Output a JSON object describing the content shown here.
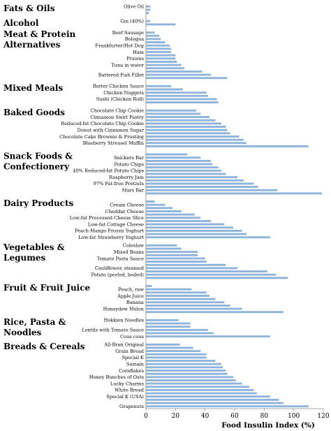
{
  "chart_data": {
    "type": "bar",
    "orientation": "horizontal",
    "xlabel": "Food Insulin Index (%)",
    "xlim": [
      0,
      120
    ],
    "xticks": [
      0,
      20,
      40,
      60,
      80,
      100,
      120
    ],
    "grid": false,
    "bar_color": "#8fb4dc",
    "groups": [
      {
        "name": "Fats & Oils",
        "items": [
          {
            "label": "Olive Oil",
            "value": 3
          },
          {
            "label": "",
            "value": 3
          },
          {
            "label": "",
            "value": 2
          }
        ]
      },
      {
        "name": "Alcohol",
        "items": [
          {
            "label": "Gin (40%)",
            "value": 3
          },
          {
            "label": "",
            "value": 20
          }
        ]
      },
      {
        "name": "Meat & Protein Alternatives",
        "items": [
          {
            "label": "Beef Sausage",
            "value": 6
          },
          {
            "label": "",
            "value": 9
          },
          {
            "label": "Bologna",
            "value": 10
          },
          {
            "label": "",
            "value": 13
          },
          {
            "label": "Frankfurter/Hot Dog",
            "value": 16
          },
          {
            "label": "",
            "value": 17
          },
          {
            "label": "Ham",
            "value": 17
          },
          {
            "label": "",
            "value": 20
          },
          {
            "label": "Prawns",
            "value": 20
          },
          {
            "label": "",
            "value": 21
          },
          {
            "label": "Tuna in water",
            "value": 24
          },
          {
            "label": "",
            "value": 26
          },
          {
            "label": "",
            "value": 38
          },
          {
            "label": "Battered Fish Fillet",
            "value": 44
          },
          {
            "label": "",
            "value": 55
          }
        ]
      },
      {
        "name": "Mixed Meals",
        "items": [
          {
            "label": "Butter Chicken Sauce",
            "value": 17
          },
          {
            "label": "",
            "value": 25
          },
          {
            "label": "Chicken Nuggets",
            "value": 41
          },
          {
            "label": "",
            "value": 42
          },
          {
            "label": "Sushi (Chicken Roll)",
            "value": 48
          },
          {
            "label": "",
            "value": 49
          }
        ]
      },
      {
        "name": "Baked Goods",
        "items": [
          {
            "label": "Chocolate Chip Cookie",
            "value": 34
          },
          {
            "label": "",
            "value": 37
          },
          {
            "label": "Cinnamon Swirl Pastry",
            "value": 43
          },
          {
            "label": "",
            "value": 47
          },
          {
            "label": "Reduced-fat Chocolate Chip Cookie",
            "value": 51
          },
          {
            "label": "",
            "value": 54
          },
          {
            "label": "Donut with Cinnamon Sugar",
            "value": 55
          },
          {
            "label": "",
            "value": 57
          },
          {
            "label": "Chocolate Cake Brownie & Frosting",
            "value": 63
          },
          {
            "label": "",
            "value": 66
          },
          {
            "label": "Blueberry Streusel Muffin",
            "value": 68
          },
          {
            "label": "",
            "value": 110
          }
        ]
      },
      {
        "name": "Snack Foods & Confectionery",
        "items": [
          {
            "label": "",
            "value": 28
          },
          {
            "label": "Snickers Bar",
            "value": 37
          },
          {
            "label": "",
            "value": 44
          },
          {
            "label": "Potato Chips",
            "value": 45
          },
          {
            "label": "",
            "value": 49
          },
          {
            "label": "40% Reduced-fat Potato Chips",
            "value": 51
          },
          {
            "label": "",
            "value": 54
          },
          {
            "label": "Raspberry Jam",
            "value": 62
          },
          {
            "label": "",
            "value": 66
          },
          {
            "label": "97% Fat-free Pretzels",
            "value": 73
          },
          {
            "label": "",
            "value": 76
          },
          {
            "label": "Mars Bar",
            "value": 89
          },
          {
            "label": "",
            "value": 119
          }
        ]
      },
      {
        "name": "Dairy Products",
        "items": [
          {
            "label": "",
            "value": 6
          },
          {
            "label": "Cream Cheese",
            "value": 13
          },
          {
            "label": "",
            "value": 18
          },
          {
            "label": "Cheddar Cheese",
            "value": 24
          },
          {
            "label": "",
            "value": 33
          },
          {
            "label": "Low-fat Processed Cheese Slice",
            "value": 37
          },
          {
            "label": "",
            "value": 44
          },
          {
            "label": "Low-fat Cottage Cheese",
            "value": 53
          },
          {
            "label": "",
            "value": 59
          },
          {
            "label": "Peach-Mango Frozen Yoghurt",
            "value": 65
          },
          {
            "label": "",
            "value": 68
          },
          {
            "label": "Low-fat Strawberry Yoghurt",
            "value": 84
          }
        ]
      },
      {
        "name": "Vegetables & Legumes",
        "items": [
          {
            "label": "Coleslaw",
            "value": 21
          },
          {
            "label": "",
            "value": 24
          },
          {
            "label": "Mixed Beans",
            "value": 35
          },
          {
            "label": "",
            "value": 35
          },
          {
            "label": "Tomato Pasta Sauce",
            "value": 40
          },
          {
            "label": "",
            "value": 41
          },
          {
            "label": "",
            "value": 54
          },
          {
            "label": "Cauliflower, steamed",
            "value": 62
          },
          {
            "label": "",
            "value": 82
          },
          {
            "label": "Potato (peeled, boiled)",
            "value": 88
          },
          {
            "label": "",
            "value": 96
          }
        ]
      },
      {
        "name": "Fruit & Fruit Juice",
        "items": [
          {
            "label": "",
            "value": 4
          },
          {
            "label": "Peach, raw",
            "value": 31
          },
          {
            "label": "",
            "value": 41
          },
          {
            "label": "Apple Juice",
            "value": 43
          },
          {
            "label": "",
            "value": 47
          },
          {
            "label": "Banana",
            "value": 53
          },
          {
            "label": "",
            "value": 57
          },
          {
            "label": "Honeydew Melon",
            "value": 65
          },
          {
            "label": "",
            "value": 93
          }
        ]
      },
      {
        "name": "Rice, Pasta & Noodles",
        "items": [
          {
            "label": "Hokkien Noodles",
            "value": 22
          },
          {
            "label": "",
            "value": 30
          },
          {
            "label": "",
            "value": 30
          },
          {
            "label": "Lentils with Tomato Sauce",
            "value": 42
          },
          {
            "label": "",
            "value": 46
          },
          {
            "label": "Cous cous",
            "value": 84
          }
        ]
      },
      {
        "name": "Breads & Cereals",
        "items": [
          {
            "label": "All-Bran Original",
            "value": 23
          },
          {
            "label": "",
            "value": 32
          },
          {
            "label": "Grain Bread",
            "value": 37
          },
          {
            "label": "",
            "value": 41
          },
          {
            "label": "Special K",
            "value": 41
          },
          {
            "label": "",
            "value": 47
          },
          {
            "label": "Sustain",
            "value": 51
          },
          {
            "label": "",
            "value": 52
          },
          {
            "label": "Cornflakes",
            "value": 54
          },
          {
            "label": "",
            "value": 55
          },
          {
            "label": "Honey Bunches of Oats",
            "value": 59
          },
          {
            "label": "",
            "value": 61
          },
          {
            "label": "Lucky Charms",
            "value": 65
          },
          {
            "label": "",
            "value": 70
          },
          {
            "label": "White Bread",
            "value": 73
          },
          {
            "label": "",
            "value": 75
          },
          {
            "label": "Special K (USA)",
            "value": 84
          },
          {
            "label": "",
            "value": 90
          },
          {
            "label": "",
            "value": 93
          },
          {
            "label": "Grapenuts",
            "value": 110
          }
        ]
      }
    ]
  }
}
